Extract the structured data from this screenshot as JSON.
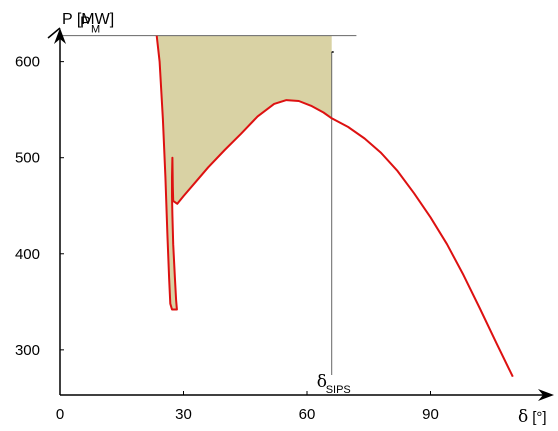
{
  "chart_data": {
    "type": "line",
    "title": "",
    "xlabel": {
      "symbol": "δ",
      "unit": "[°]"
    },
    "ylabel": "P [MW]",
    "xlim": [
      0,
      120
    ],
    "ylim": [
      253,
      635
    ],
    "xticks": [
      0,
      30,
      60,
      90
    ],
    "yticks": [
      300,
      400,
      500,
      600
    ],
    "grid": false,
    "colors": {
      "curve": "#dd1111",
      "area": "#d9d2a4",
      "axis": "#000000",
      "reference_line": "#666666"
    },
    "reference_lines": {
      "pm": {
        "label": "P",
        "subscript": "M",
        "value": 627
      },
      "delta_sips": {
        "label": "δ",
        "subscript": "SIPS",
        "value": 66
      }
    },
    "series": [
      {
        "values": [
          [
            23.5,
            627
          ],
          [
            24.2,
            600
          ],
          [
            25.0,
            540
          ],
          [
            25.6,
            480
          ],
          [
            26.1,
            420
          ],
          [
            26.5,
            375
          ],
          [
            26.8,
            348
          ],
          [
            27.2,
            342
          ],
          [
            28.4,
            342
          ],
          [
            28.2,
            352
          ],
          [
            27.9,
            375
          ],
          [
            27.5,
            410
          ],
          [
            27.3,
            440
          ],
          [
            27.2,
            460
          ],
          [
            27.2,
            480
          ],
          [
            27.3,
            500
          ],
          [
            27.4,
            470
          ],
          [
            27.5,
            455
          ],
          [
            28.5,
            452
          ],
          [
            30,
            460
          ],
          [
            33,
            475
          ],
          [
            36,
            490
          ],
          [
            40,
            508
          ],
          [
            44,
            525
          ],
          [
            48,
            543
          ],
          [
            52,
            556
          ],
          [
            55,
            560
          ],
          [
            58,
            559
          ],
          [
            61,
            554
          ],
          [
            64,
            547
          ],
          [
            66,
            541
          ],
          [
            70,
            532
          ],
          [
            74,
            520
          ],
          [
            78,
            505
          ],
          [
            82,
            486
          ],
          [
            86,
            463
          ],
          [
            90,
            438
          ],
          [
            94,
            410
          ],
          [
            98,
            378
          ],
          [
            102,
            343
          ],
          [
            106,
            307
          ],
          [
            110,
            272
          ]
        ]
      }
    ],
    "shaded_area": {
      "lower_boundary": [
        [
          23.5,
          627
        ],
        [
          24.2,
          600
        ],
        [
          25.0,
          540
        ],
        [
          25.6,
          480
        ],
        [
          26.1,
          420
        ],
        [
          26.5,
          375
        ],
        [
          26.8,
          348
        ],
        [
          27.2,
          342
        ],
        [
          28.4,
          342
        ],
        [
          28.2,
          352
        ],
        [
          27.9,
          375
        ],
        [
          27.5,
          410
        ],
        [
          27.3,
          440
        ],
        [
          27.2,
          460
        ],
        [
          27.5,
          455
        ],
        [
          28.5,
          452
        ],
        [
          30,
          460
        ],
        [
          33,
          475
        ],
        [
          36,
          490
        ],
        [
          40,
          508
        ],
        [
          44,
          525
        ],
        [
          48,
          543
        ],
        [
          52,
          556
        ],
        [
          55,
          560
        ],
        [
          58,
          559
        ],
        [
          61,
          554
        ],
        [
          64,
          547
        ],
        [
          66,
          541
        ]
      ],
      "upper_value": 627
    }
  }
}
